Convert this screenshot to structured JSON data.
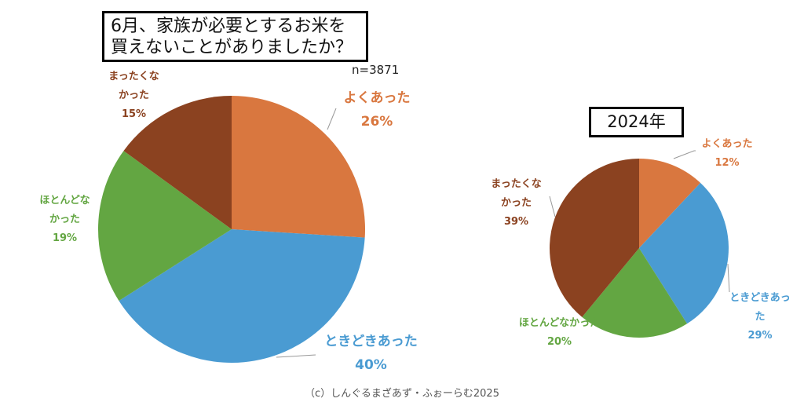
{
  "chart_data": [
    {
      "type": "pie",
      "title": "6月、家族が必要とするお米を買えないことがありましたか？",
      "title_lines": [
        "6月、家族が必要とするお米を",
        "買えないことがありましたか？"
      ],
      "note": "n=3871",
      "categories": [
        "よくあった",
        "ときどきあった",
        "ほとんどなかった",
        "まったくなかった"
      ],
      "values": [
        26,
        40,
        19,
        15
      ],
      "labels": [
        {
          "lines": [
            "よくあった"
          ],
          "pct": "26%"
        },
        {
          "lines": [
            "ときどきあった"
          ],
          "pct": "40%"
        },
        {
          "lines": [
            "ほとんどな",
            "かった"
          ],
          "pct": "19%"
        },
        {
          "lines": [
            "まったくな",
            "かった"
          ],
          "pct": "15%"
        }
      ],
      "colors": [
        "#D9773F",
        "#4A9BD2",
        "#63A642",
        "#8B4220"
      ]
    },
    {
      "type": "pie",
      "title": "2024年",
      "categories": [
        "よくあった",
        "ときどきあった",
        "ほとんどなかった",
        "まったくなかった"
      ],
      "values": [
        12,
        29,
        20,
        39
      ],
      "labels": [
        {
          "lines": [
            "よくあった"
          ],
          "pct": "12%"
        },
        {
          "lines": [
            "ときどきあっ",
            "た"
          ],
          "pct": "29%"
        },
        {
          "lines": [
            "ほとんどなかった"
          ],
          "pct": "20%"
        },
        {
          "lines": [
            "まったくな",
            "かった"
          ],
          "pct": "39%"
        }
      ],
      "colors": [
        "#D9773F",
        "#4A9BD2",
        "#63A642",
        "#8B4220"
      ]
    }
  ],
  "footer": "（c）しんぐるまざあず・ふぉーらむ2025"
}
